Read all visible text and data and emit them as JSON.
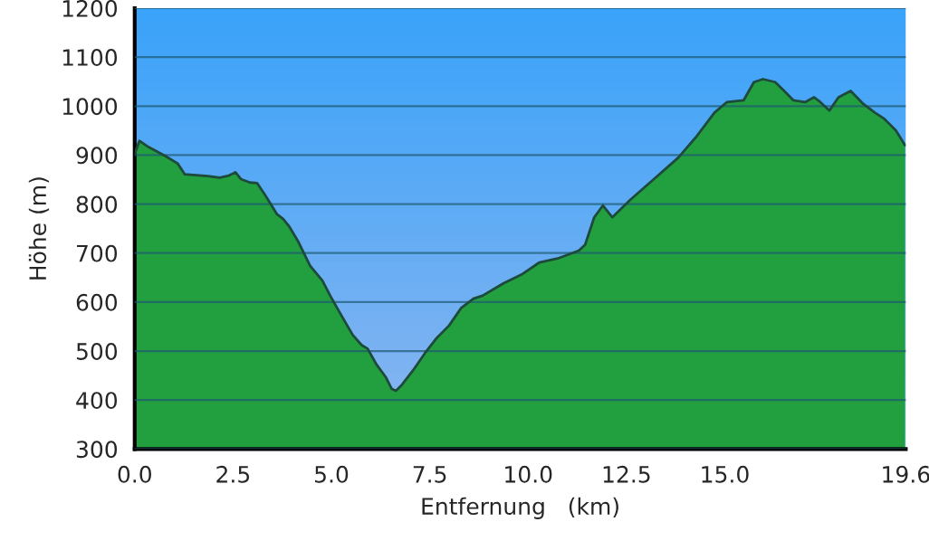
{
  "chart_data": {
    "type": "area",
    "xlabel": "Entfernung   (km)",
    "ylabel": "Höhe (m)",
    "xlim": [
      0,
      19.6
    ],
    "ylim": [
      300,
      1200
    ],
    "xticks": [
      {
        "value": 0,
        "label": "0.0"
      },
      2.5,
      {
        "value": 5,
        "label": "5.0"
      },
      7.5,
      {
        "value": 10,
        "label": "10.0"
      },
      12.5,
      {
        "value": 15,
        "label": "15.0"
      },
      19.6
    ],
    "yticks": [
      300,
      400,
      500,
      600,
      700,
      800,
      900,
      1000,
      1100,
      1200
    ],
    "grid": "y",
    "legend": false,
    "series": [
      {
        "color": "#22a040",
        "x": [
          0,
          0.12,
          0.32,
          0.78,
          1.09,
          1.27,
          1.86,
          2.16,
          2.39,
          2.56,
          2.7,
          2.93,
          3.11,
          3.31,
          3.62,
          3.77,
          3.93,
          4.16,
          4.46,
          4.77,
          4.97,
          5.23,
          5.54,
          5.77,
          5.92,
          6.15,
          6.38,
          6.53,
          6.64,
          6.79,
          7.07,
          7.38,
          7.68,
          7.99,
          8.3,
          8.61,
          8.84,
          9.37,
          9.83,
          10.29,
          10.75,
          11.29,
          11.45,
          11.68,
          11.9,
          12.14,
          12.6,
          13.21,
          13.82,
          14.28,
          14.74,
          15.05,
          15.48,
          15.74,
          15.97,
          16.28,
          16.51,
          16.74,
          17.04,
          17.27,
          17.43,
          17.66,
          17.89,
          18.2,
          18.5,
          18.81,
          19.04,
          19.35,
          19.58
        ],
        "values": [
          902,
          929,
          918,
          898,
          883,
          861,
          857,
          854,
          858,
          865,
          851,
          844,
          843,
          819,
          779,
          770,
          754,
          723,
          674,
          644,
          613,
          576,
          533,
          512,
          505,
          472,
          447,
          423,
          419,
          431,
          460,
          496,
          527,
          552,
          588,
          607,
          613,
          638,
          656,
          681,
          689,
          705,
          717,
          773,
          797,
          773,
          809,
          852,
          895,
          938,
          987,
          1008,
          1012,
          1049,
          1055,
          1049,
          1031,
          1012,
          1008,
          1018,
          1008,
          991,
          1018,
          1031,
          1006,
          987,
          975,
          950,
          920
        ]
      }
    ]
  }
}
